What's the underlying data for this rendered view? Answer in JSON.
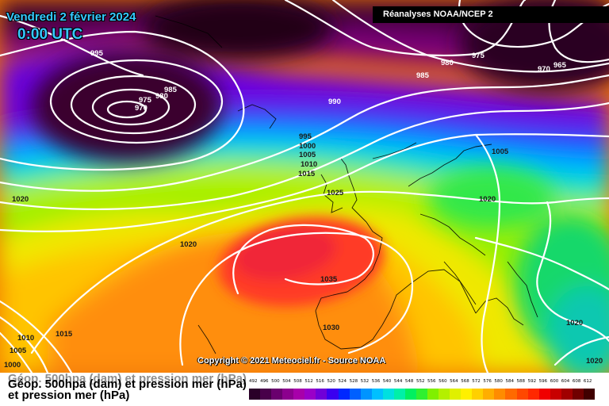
{
  "header": {
    "date": "Vendredi 2 février 2024",
    "time": "0:00 UTC",
    "source": "Réanalyses NOAA/NCEP 2"
  },
  "copyright": "Copyright © 2021 Meteociel.fr - Source NOAA",
  "footer": {
    "title": "Géop. 500hpa (dam) et pression mer (hPa)",
    "subtitle": "et pression mer (hPa)"
  },
  "isobar_labels": [
    "995",
    "975",
    "980",
    "970",
    "985",
    "990",
    "985",
    "980",
    "975",
    "970",
    "965",
    "995",
    "1000",
    "1005",
    "1010",
    "1015",
    "1025",
    "1005",
    "1020",
    "1020",
    "1020",
    "1035",
    "1030",
    "1010",
    "1015",
    "1005",
    "1000",
    "1020",
    "1020"
  ],
  "color_scale": {
    "labels": [
      "492",
      "496",
      "500",
      "504",
      "508",
      "512",
      "516",
      "520",
      "524",
      "528",
      "532",
      "536",
      "540",
      "544",
      "548",
      "552",
      "556",
      "560",
      "564",
      "568",
      "572",
      "576",
      "580",
      "584",
      "588",
      "592",
      "596",
      "600",
      "604",
      "608",
      "612"
    ],
    "colors": [
      "#2a0028",
      "#48004a",
      "#6a006e",
      "#8c008e",
      "#a800aa",
      "#9a00c8",
      "#7000d8",
      "#3a00f0",
      "#0028ff",
      "#0060ff",
      "#0094ff",
      "#00c0ff",
      "#00e0e0",
      "#00f0a8",
      "#00f060",
      "#30f030",
      "#80f000",
      "#b4f000",
      "#e0f000",
      "#fff000",
      "#ffd000",
      "#ffae00",
      "#ff8c00",
      "#ff6a00",
      "#ff4800",
      "#ff2800",
      "#f00000",
      "#c80000",
      "#a00000",
      "#700000",
      "#400000"
    ]
  }
}
